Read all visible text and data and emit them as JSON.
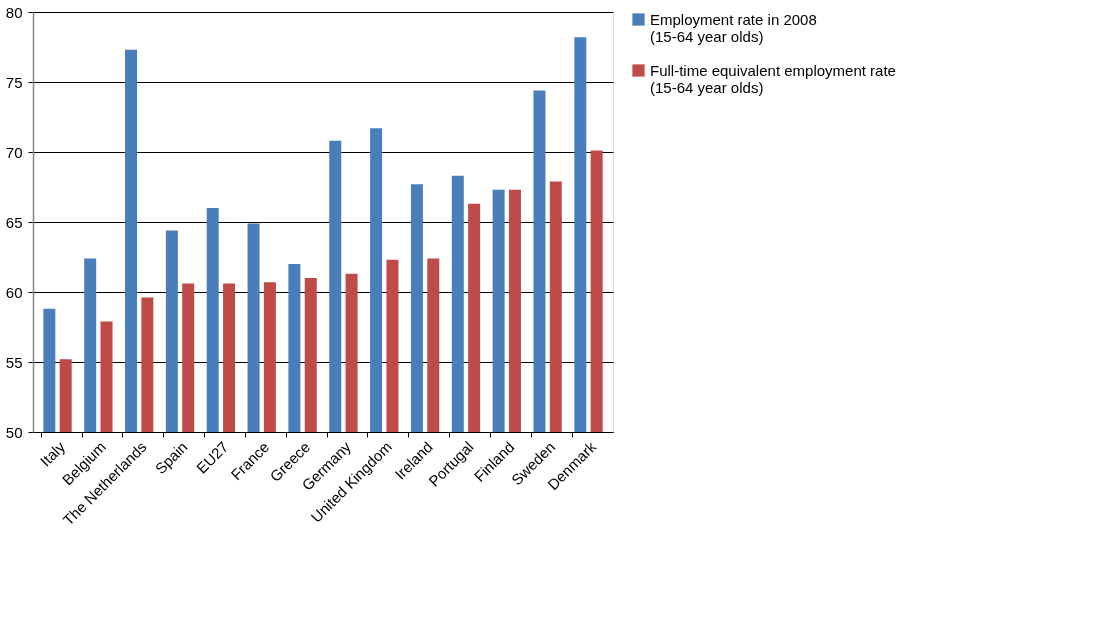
{
  "chart_data": {
    "type": "bar",
    "categories": [
      "Italy",
      "Belgium",
      "The Netherlands",
      "Spain",
      "EU27",
      "France",
      "Greece",
      "Germany",
      "United Kingdom",
      "Ireland",
      "Portugal",
      "Finland",
      "Sweden",
      "Denmark"
    ],
    "series": [
      {
        "name": "Employment rate in 2008 (15-64 year olds)",
        "color": "#4a7ebb",
        "values": [
          58.8,
          62.4,
          77.3,
          64.4,
          66.0,
          64.9,
          62.0,
          70.8,
          71.7,
          67.7,
          68.3,
          67.3,
          74.4,
          78.2
        ]
      },
      {
        "name": "Full-time equivalent employment rate (15-64 year olds)",
        "color": "#be4b48",
        "values": [
          55.2,
          57.9,
          59.6,
          60.6,
          60.6,
          60.7,
          61.0,
          61.3,
          62.3,
          62.4,
          66.3,
          67.3,
          67.9,
          70.1
        ]
      }
    ],
    "ylim": [
      50,
      80
    ],
    "yticks": [
      50,
      55,
      60,
      65,
      70,
      75,
      80
    ],
    "grid": "y",
    "legend": "right"
  }
}
